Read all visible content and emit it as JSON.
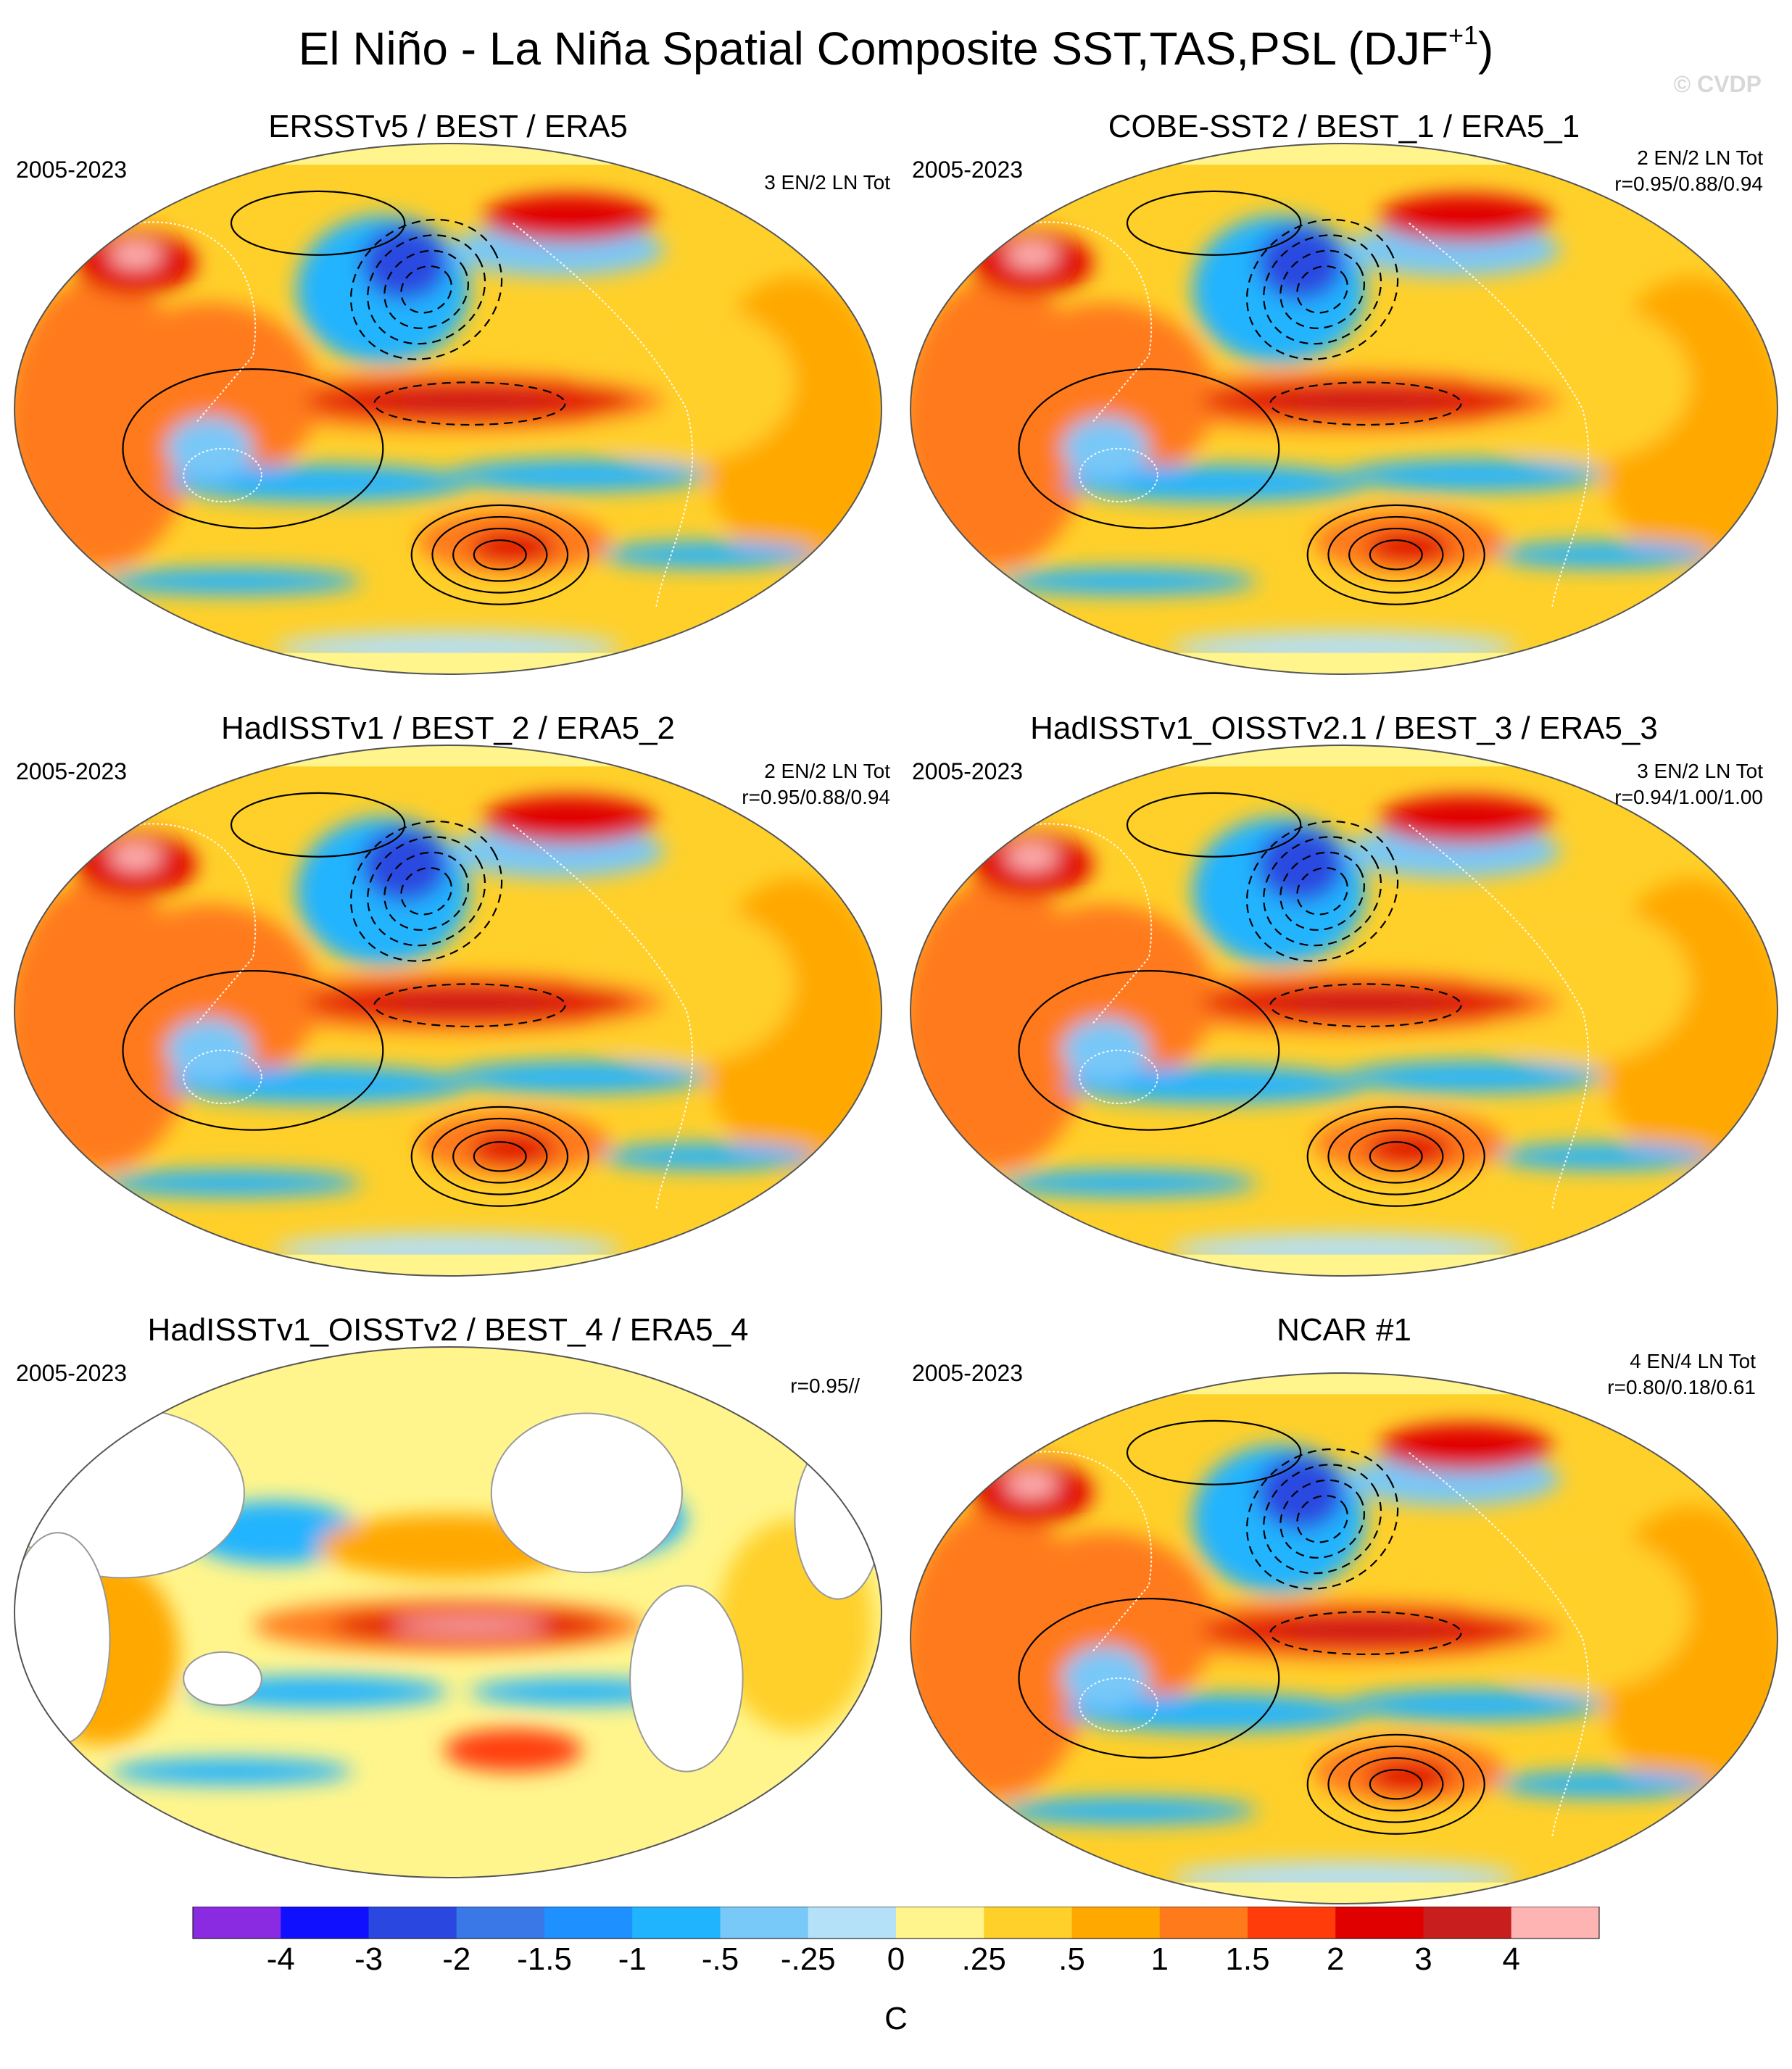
{
  "title": {
    "main": "El Niño - La Niña Spatial Composite SST,TAS,PSL (DJF",
    "superscript": "+1",
    "close": ")"
  },
  "watermark": "© CVDP",
  "chart_data": [
    {
      "type": "heatmap",
      "title": "ERSSTv5 / BEST / ERA5",
      "years": "2005-2023",
      "stats": [
        "3 EN/2 LN Tot"
      ],
      "full": true,
      "psl_contours": true
    },
    {
      "type": "heatmap",
      "title": "COBE-SST2 / BEST_1 / ERA5_1",
      "years": "2005-2023",
      "stats": [
        "2 EN/2 LN Tot",
        "r=0.95/0.88/0.94"
      ],
      "full": true,
      "psl_contours": true
    },
    {
      "type": "heatmap",
      "title": "HadISSTv1 / BEST_2 / ERA5_2",
      "years": "2005-2023",
      "stats": [
        "2 EN/2 LN Tot",
        "r=0.95/0.88/0.94"
      ],
      "full": true,
      "psl_contours": true
    },
    {
      "type": "heatmap",
      "title": "HadISSTv1_OISSTv2.1 / BEST_3 / ERA5_3",
      "years": "2005-2023",
      "stats": [
        "3 EN/2 LN Tot",
        "r=0.94/1.00/1.00"
      ],
      "full": true,
      "psl_contours": true
    },
    {
      "type": "heatmap",
      "title": "HadISSTv1_OISSTv2 / BEST_4 / ERA5_4",
      "years": "2005-2023",
      "stats": [
        "r=0.95//"
      ],
      "full": false,
      "psl_contours": false
    },
    {
      "type": "heatmap",
      "title": "NCAR #1",
      "years": "2005-2023",
      "stats": [
        "4 EN/4 LN Tot",
        "r=0.80/0.18/0.61"
      ],
      "full": true,
      "psl_contours": true
    }
  ],
  "colorbar": {
    "unit": "C",
    "colors": [
      "#8a2be2",
      "#1010ff",
      "#2a48e0",
      "#3a78e8",
      "#1e90ff",
      "#20b4ff",
      "#78c8f8",
      "#b4e0f8",
      "#fff58c",
      "#ffd02a",
      "#ffa800",
      "#ff7a1a",
      "#ff3c0a",
      "#e00000",
      "#c81e1e",
      "#ffb4b4"
    ],
    "tick_labels": [
      "-4",
      "-3",
      "-2",
      "-1.5",
      "-1",
      "-.5",
      "-.25",
      "0",
      ".25",
      ".5",
      "1",
      "1.5",
      "2",
      "3",
      "4"
    ]
  }
}
